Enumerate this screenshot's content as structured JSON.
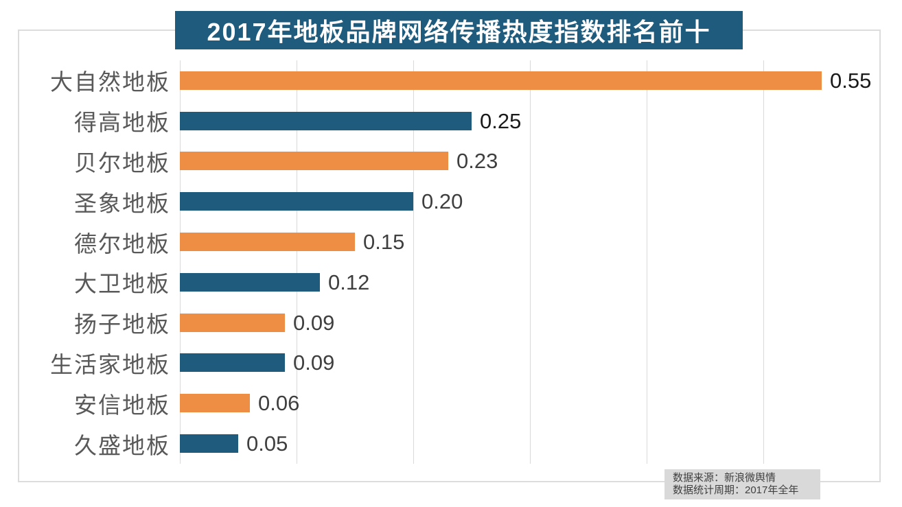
{
  "title": {
    "text": "2017年地板品牌网络传播热度指数排名前十",
    "bg_color": "#1e5b7c",
    "text_color": "#ffffff"
  },
  "footer": {
    "line1": "数据来源：新浪微舆情",
    "line2": "数据统计周期：2017年全年",
    "bg_color": "#d9d9d9",
    "text_color": "#404040"
  },
  "colors": {
    "orange": "#ed8e44",
    "teal": "#1e5b7c",
    "gridline": "#d9d9d9",
    "category_label": "#595959",
    "value_emphasis": "#1a1a1a",
    "value_normal": "#3f3f3f"
  },
  "chart_data": {
    "type": "bar",
    "orientation": "horizontal",
    "title": "2017年地板品牌网络传播热度指数排名前十",
    "categories": [
      "大自然地板",
      "得高地板",
      "贝尔地板",
      "圣象地板",
      "德尔地板",
      "大卫地板",
      "扬子地板",
      "生活家地板",
      "安信地板",
      "久盛地板"
    ],
    "values": [
      0.55,
      0.25,
      0.23,
      0.2,
      0.15,
      0.12,
      0.09,
      0.09,
      0.06,
      0.05
    ],
    "value_labels": [
      "0.55",
      "0.25",
      "0.23",
      "0.20",
      "0.15",
      "0.12",
      "0.09",
      "0.09",
      "0.06",
      "0.05"
    ],
    "bar_colors": [
      "#ed8e44",
      "#1e5b7c",
      "#ed8e44",
      "#1e5b7c",
      "#ed8e44",
      "#1e5b7c",
      "#ed8e44",
      "#1e5b7c",
      "#ed8e44",
      "#1e5b7c"
    ],
    "value_label_colors": [
      "#1a1a1a",
      "#1a1a1a",
      "#3f3f3f",
      "#3f3f3f",
      "#3f3f3f",
      "#3f3f3f",
      "#3f3f3f",
      "#3f3f3f",
      "#3f3f3f",
      "#3f3f3f"
    ],
    "xlabel": "",
    "ylabel": "",
    "xlim": [
      0,
      0.6
    ],
    "gridline_step": 0.1,
    "grid": "vertical",
    "legend": "none",
    "data_labels": "outside-end"
  }
}
